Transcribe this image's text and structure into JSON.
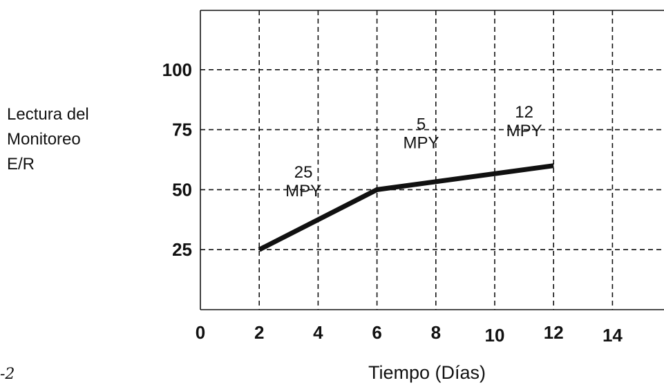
{
  "chart_data": {
    "type": "line",
    "title": "",
    "xlabel": "Tiempo (Días)",
    "ylabel_lines": [
      "Lectura del",
      "Monitoreo",
      "E/R"
    ],
    "xlim": [
      0,
      16
    ],
    "ylim": [
      0,
      120
    ],
    "x_ticks": [
      0,
      2,
      4,
      6,
      8,
      10,
      12,
      14
    ],
    "y_ticks": [
      25,
      50,
      75,
      100
    ],
    "grid": true,
    "series": [
      {
        "values": [
          {
            "x": 2,
            "y": 25
          },
          {
            "x": 6,
            "y": 50
          },
          {
            "x": 12,
            "y": 60
          }
        ],
        "color": "#111111"
      }
    ],
    "annotations": [
      {
        "lines": [
          "25",
          "MPY"
        ],
        "x": 3.5,
        "y": 55
      },
      {
        "lines": [
          "5",
          "MPY"
        ],
        "x": 7.5,
        "y": 75
      },
      {
        "lines": [
          "12",
          "MPY"
        ],
        "x": 11.0,
        "y": 80
      }
    ]
  },
  "figure_fragment": "-2"
}
